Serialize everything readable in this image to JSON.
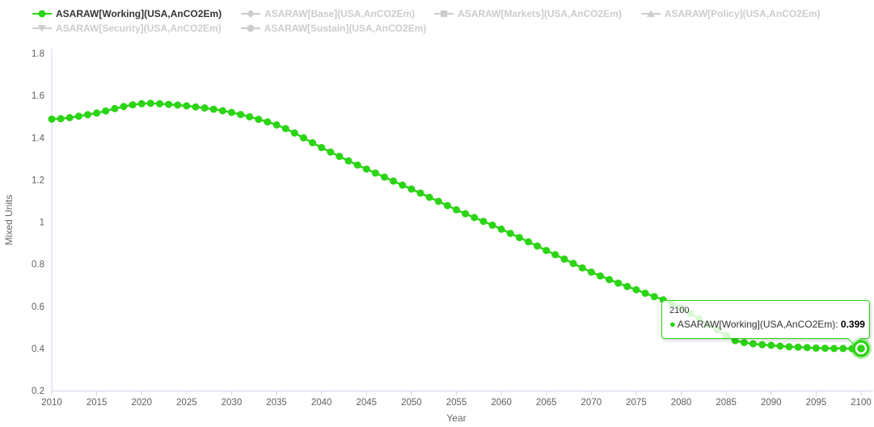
{
  "colors": {
    "accent_green": "#2bd414",
    "accent_green_glow": "rgba(43,212,20,0.35)",
    "disabled_gray": "#cccccc",
    "axis_line": "#ccd6eb",
    "tick_text": "#606060",
    "axis_title_text": "#666666",
    "legend_active_text": "#333333"
  },
  "icons": {
    "series_bullet": "●"
  },
  "legend": {
    "items": [
      {
        "id": "working",
        "label": "ASARAW[Working](USA,AnCO2Em)",
        "marker": "circle",
        "active": true
      },
      {
        "id": "base",
        "label": "ASARAW[Base](USA,AnCO2Em)",
        "marker": "diamond",
        "active": false
      },
      {
        "id": "markets",
        "label": "ASARAW[Markets](USA,AnCO2Em)",
        "marker": "square",
        "active": false
      },
      {
        "id": "policy",
        "label": "ASARAW[Policy](USA,AnCO2Em)",
        "marker": "triangle",
        "active": false
      },
      {
        "id": "security",
        "label": "ASARAW[Security](USA,AnCO2Em)",
        "marker": "triangle-down",
        "active": false
      },
      {
        "id": "sustain",
        "label": "ASARAW[Sustain](USA,AnCO2Em)",
        "marker": "circle",
        "active": false
      }
    ],
    "rows": [
      [
        0,
        1,
        2,
        3
      ],
      [
        4,
        5
      ]
    ]
  },
  "tooltip": {
    "header": "2100",
    "series_label": "ASARAW[Working](USA,AnCO2Em):",
    "value": "0.399"
  },
  "chart_data": {
    "type": "line",
    "title": "",
    "xlabel": "Year",
    "ylabel": "Mixed Units",
    "xlim": [
      2010,
      2100
    ],
    "ylim": [
      0.2,
      1.8
    ],
    "x_ticks": [
      2010,
      2015,
      2020,
      2025,
      2030,
      2035,
      2040,
      2045,
      2050,
      2055,
      2060,
      2065,
      2070,
      2075,
      2080,
      2085,
      2090,
      2095,
      2100
    ],
    "y_ticks": [
      0.2,
      0.4,
      0.6,
      0.8,
      1,
      1.2,
      1.4,
      1.6,
      1.8
    ],
    "grid": false,
    "legend_position": "top-left",
    "highlight": {
      "year": 2100,
      "value": 0.399
    },
    "series": [
      {
        "name": "ASARAW[Working](USA,AnCO2Em)",
        "color": "#2bd414",
        "visible": true,
        "x_start": 2010,
        "x_step": 1,
        "values": [
          1.488,
          1.49,
          1.495,
          1.502,
          1.509,
          1.517,
          1.527,
          1.538,
          1.548,
          1.556,
          1.561,
          1.563,
          1.561,
          1.558,
          1.555,
          1.551,
          1.546,
          1.541,
          1.535,
          1.528,
          1.52,
          1.51,
          1.499,
          1.487,
          1.475,
          1.461,
          1.443,
          1.422,
          1.399,
          1.376,
          1.353,
          1.332,
          1.311,
          1.29,
          1.27,
          1.251,
          1.232,
          1.213,
          1.194,
          1.175,
          1.156,
          1.137,
          1.117,
          1.098,
          1.078,
          1.058,
          1.039,
          1.021,
          1.003,
          0.985,
          0.966,
          0.946,
          0.926,
          0.906,
          0.886,
          0.865,
          0.845,
          0.824,
          0.803,
          0.782,
          0.762,
          0.744,
          0.727,
          0.71,
          0.694,
          0.679,
          0.662,
          0.646,
          0.631,
          0.612,
          0.592,
          0.566,
          0.54,
          0.514,
          0.488,
          0.462,
          0.437,
          0.428,
          0.422,
          0.418,
          0.415,
          0.411,
          0.408,
          0.406,
          0.404,
          0.402,
          0.401,
          0.4,
          0.4,
          0.399,
          0.399
        ]
      },
      {
        "name": "ASARAW[Base](USA,AnCO2Em)",
        "visible": false
      },
      {
        "name": "ASARAW[Markets](USA,AnCO2Em)",
        "visible": false
      },
      {
        "name": "ASARAW[Policy](USA,AnCO2Em)",
        "visible": false
      },
      {
        "name": "ASARAW[Security](USA,AnCO2Em)",
        "visible": false
      },
      {
        "name": "ASARAW[Sustain](USA,AnCO2Em)",
        "visible": false
      }
    ]
  }
}
